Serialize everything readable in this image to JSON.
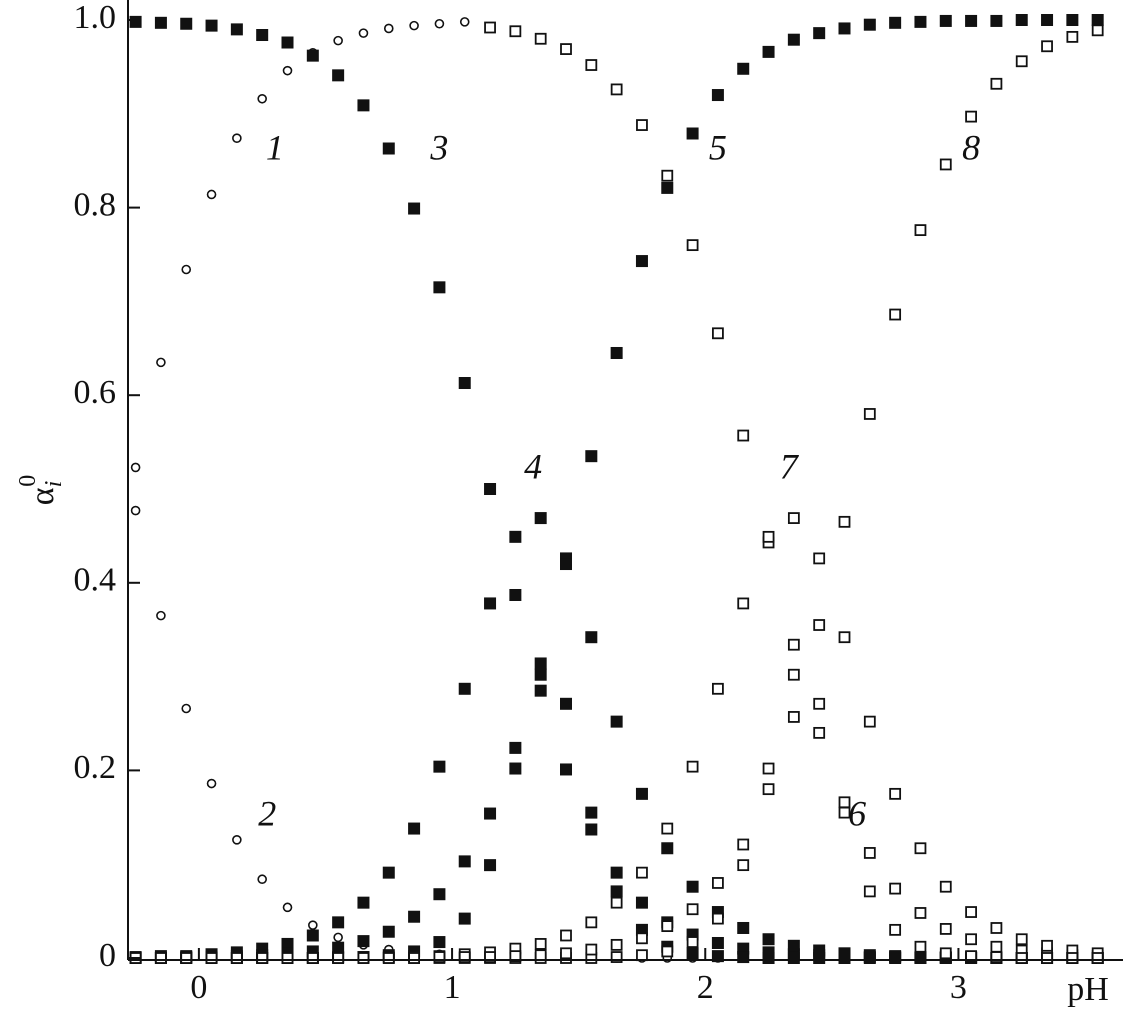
{
  "chart_data": {
    "type": "scatter",
    "x_label": "pH",
    "y_label": {
      "base": "α",
      "sub": "i",
      "sup": "0"
    },
    "annotations": [
      "1",
      "2",
      "3",
      "4",
      "5",
      "6",
      "7",
      "8"
    ],
    "xlim": [
      -0.28,
      3.65
    ],
    "ylim": [
      0,
      1
    ],
    "xticks": [
      0,
      1,
      2,
      3
    ],
    "yticks": [
      0,
      0.2,
      0.4,
      0.6,
      0.8,
      {
        "value": 1,
        "label": "1.0"
      }
    ],
    "x": [
      -0.25,
      -0.15,
      -0.05,
      0.05,
      0.15,
      0.25,
      0.35,
      0.45,
      0.55,
      0.65,
      0.75,
      0.85,
      0.95,
      1.05,
      1.15,
      1.25,
      1.35,
      1.45,
      1.55,
      1.65,
      1.75,
      1.85,
      1.95,
      2.05,
      2.15,
      2.25,
      2.35,
      2.45,
      2.55,
      2.65,
      2.75,
      2.85,
      2.95,
      3.05,
      3.15,
      3.25,
      3.35,
      3.45,
      3.55
    ],
    "series": [
      {
        "marker": "circle-open",
        "color": "#111111",
        "values": [
          0.523,
          0.635,
          0.734,
          0.814,
          0.874,
          0.916,
          0.946,
          0.965,
          0.978,
          0.986,
          0.991,
          0.994,
          0.996,
          0.998,
          null,
          null,
          null,
          null,
          null,
          null,
          null,
          null,
          null,
          null,
          null,
          null,
          null,
          null,
          null,
          null,
          null,
          null,
          null,
          null,
          null,
          null,
          null,
          null,
          null
        ]
      },
      {
        "marker": "circle-open",
        "color": "#111111",
        "values": [
          0.477,
          0.365,
          0.266,
          0.186,
          0.126,
          0.084,
          0.054,
          0.035,
          0.022,
          0.014,
          0.009,
          0.006,
          0.004,
          0.002,
          0.001,
          0.001,
          0,
          0,
          0,
          0,
          0,
          0,
          0,
          0,
          0,
          0,
          0,
          0,
          0,
          0,
          0,
          0,
          0,
          0,
          0,
          0,
          0,
          0,
          0
        ]
      },
      {
        "marker": "square-filled",
        "color": "#111111",
        "values": [
          0.998,
          0.997,
          0.996,
          0.994,
          0.99,
          0.984,
          0.976,
          0.962,
          0.941,
          0.909,
          0.863,
          0.799,
          0.715,
          0.613,
          0.5,
          0.387,
          0.285,
          0.201,
          0.137,
          0.091,
          0.059,
          0.038,
          0.025,
          0.016,
          0.01,
          0.006,
          0.004,
          0.003,
          0.002,
          0.001,
          0.001,
          0,
          0,
          0,
          0,
          0,
          0,
          0,
          0
        ]
      },
      {
        "marker": "square-filled",
        "color": "#111111",
        "values": [
          0.001,
          0.002,
          0.002,
          0.004,
          0.006,
          0.01,
          0.015,
          0.024,
          0.038,
          0.059,
          0.091,
          0.138,
          0.204,
          0.287,
          0.378,
          0.449,
          0.469,
          0.426,
          0.342,
          0.252,
          0.175,
          0.117,
          0.076,
          0.049,
          0.032,
          0.02,
          0.013,
          0.008,
          0.005,
          0.003,
          0.002,
          0.001,
          0.001,
          0.001,
          0,
          0,
          0,
          0,
          0
        ]
      },
      {
        "marker": "square-filled",
        "color": "#111111",
        "values": [
          0,
          0,
          0,
          0,
          0,
          0,
          0,
          0,
          0.001,
          0.001,
          0.003,
          0.007,
          0.017,
          0.042,
          0.099,
          0.202,
          0.302,
          0.271,
          0.155,
          0.071,
          0.03,
          0.012,
          0.005,
          0.002,
          0.001,
          0,
          0,
          0,
          0,
          0,
          0,
          0,
          0,
          0,
          0,
          0,
          0,
          0,
          0
        ]
      },
      {
        "marker": "square-filled",
        "color": "#111111",
        "values": [
          0,
          0,
          0.001,
          0.001,
          0.002,
          0.003,
          0.005,
          0.007,
          0.011,
          0.018,
          0.028,
          0.044,
          0.068,
          0.103,
          0.154,
          0.224,
          0.314,
          0.42,
          0.535,
          0.645,
          0.743,
          0.821,
          0.879,
          0.92,
          0.948,
          0.966,
          0.979,
          0.986,
          0.991,
          0.995,
          0.997,
          0.998,
          0.999,
          0.999,
          0.999,
          1,
          1,
          1,
          1
        ]
      },
      {
        "marker": "square-open",
        "color": "#111111",
        "values": [
          null,
          null,
          null,
          null,
          null,
          null,
          null,
          null,
          null,
          null,
          null,
          null,
          null,
          null,
          0.992,
          0.988,
          0.98,
          0.969,
          0.952,
          0.926,
          0.888,
          0.834,
          0.76,
          0.666,
          0.557,
          0.443,
          0.334,
          0.24,
          0.166,
          0.112,
          0.074,
          0.048,
          0.031,
          0.02,
          0.012,
          0.008,
          0.005,
          0.003,
          0.002
        ]
      },
      {
        "marker": "square-open",
        "color": "#111111",
        "values": [
          0,
          0,
          0,
          0,
          0,
          0,
          0,
          0,
          0,
          0.001,
          0.001,
          0.002,
          0.002,
          0.004,
          0.006,
          0.01,
          0.015,
          0.024,
          0.038,
          0.059,
          0.091,
          0.138,
          0.204,
          0.287,
          0.378,
          0.449,
          0.469,
          0.426,
          0.342,
          0.252,
          0.175,
          0.117,
          0.076,
          0.049,
          0.032,
          0.02,
          0.013,
          0.008,
          0.005
        ]
      },
      {
        "marker": "square-open",
        "color": "#111111",
        "values": [
          0,
          0,
          0,
          0,
          0,
          0,
          0,
          0,
          0,
          0,
          0,
          0,
          0,
          0,
          0,
          0,
          0,
          0,
          0,
          0.001,
          0.003,
          0.007,
          0.017,
          0.042,
          0.099,
          0.202,
          0.302,
          0.271,
          0.155,
          0.071,
          0.03,
          0.012,
          0.005,
          0.002,
          0.001,
          0,
          0,
          0,
          0
        ]
      },
      {
        "marker": "square-open",
        "color": "#111111",
        "values": [
          0,
          0,
          0,
          0,
          0,
          0,
          0,
          0,
          0,
          0,
          0,
          0,
          0.001,
          0.001,
          0.001,
          0.002,
          0.003,
          0.005,
          0.009,
          0.014,
          0.021,
          0.034,
          0.052,
          0.08,
          0.121,
          0.18,
          0.257,
          0.355,
          0.465,
          0.58,
          0.686,
          0.776,
          0.846,
          0.897,
          0.932,
          0.956,
          0.972,
          0.982,
          0.989
        ]
      }
    ]
  }
}
